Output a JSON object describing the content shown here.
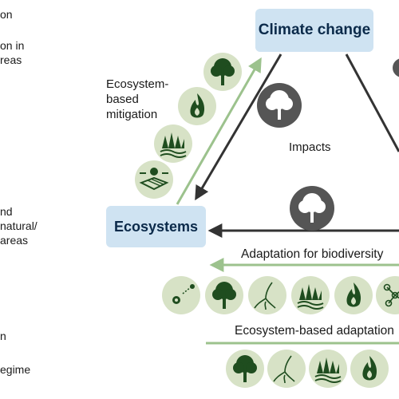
{
  "nodes": {
    "climate": "Climate change",
    "ecosystems": "Ecosystems"
  },
  "labels": {
    "mitigation": [
      "Ecosystem-",
      "based",
      "mitigation"
    ],
    "impacts": "Impacts",
    "adaptation_biodiversity": "Adaptation for biodiversity",
    "ecosystem_adaptation": "Ecosystem-based adaptation"
  },
  "left_fragments": [
    "on",
    "on in",
    "reas",
    "nd",
    " natural/",
    "areas",
    "n",
    "egime"
  ],
  "icons": {
    "mitigation": [
      "tree-icon",
      "fire-icon",
      "grass-icon",
      "land-use-icon"
    ],
    "impacts_top": "tree-outline-icon",
    "impacts_mid": "tree-outline-icon",
    "adaptation_biodiversity": [
      "species-movement-icon",
      "tree-icon",
      "roots-icon",
      "grass-icon",
      "fire-icon",
      "network-icon"
    ],
    "ecosystem_adaptation": [
      "tree-icon",
      "roots-icon",
      "grass-icon",
      "fire-icon"
    ]
  },
  "colors": {
    "box_fill": "#cfe3f2",
    "box_text": "#0b2a4a",
    "arrow_dark": "#333333",
    "arrow_green": "#9cc28d",
    "icon_bg": "#d7e2c6",
    "icon_dark_bg": "#555555",
    "icon_fg": "#1f4d1f"
  }
}
